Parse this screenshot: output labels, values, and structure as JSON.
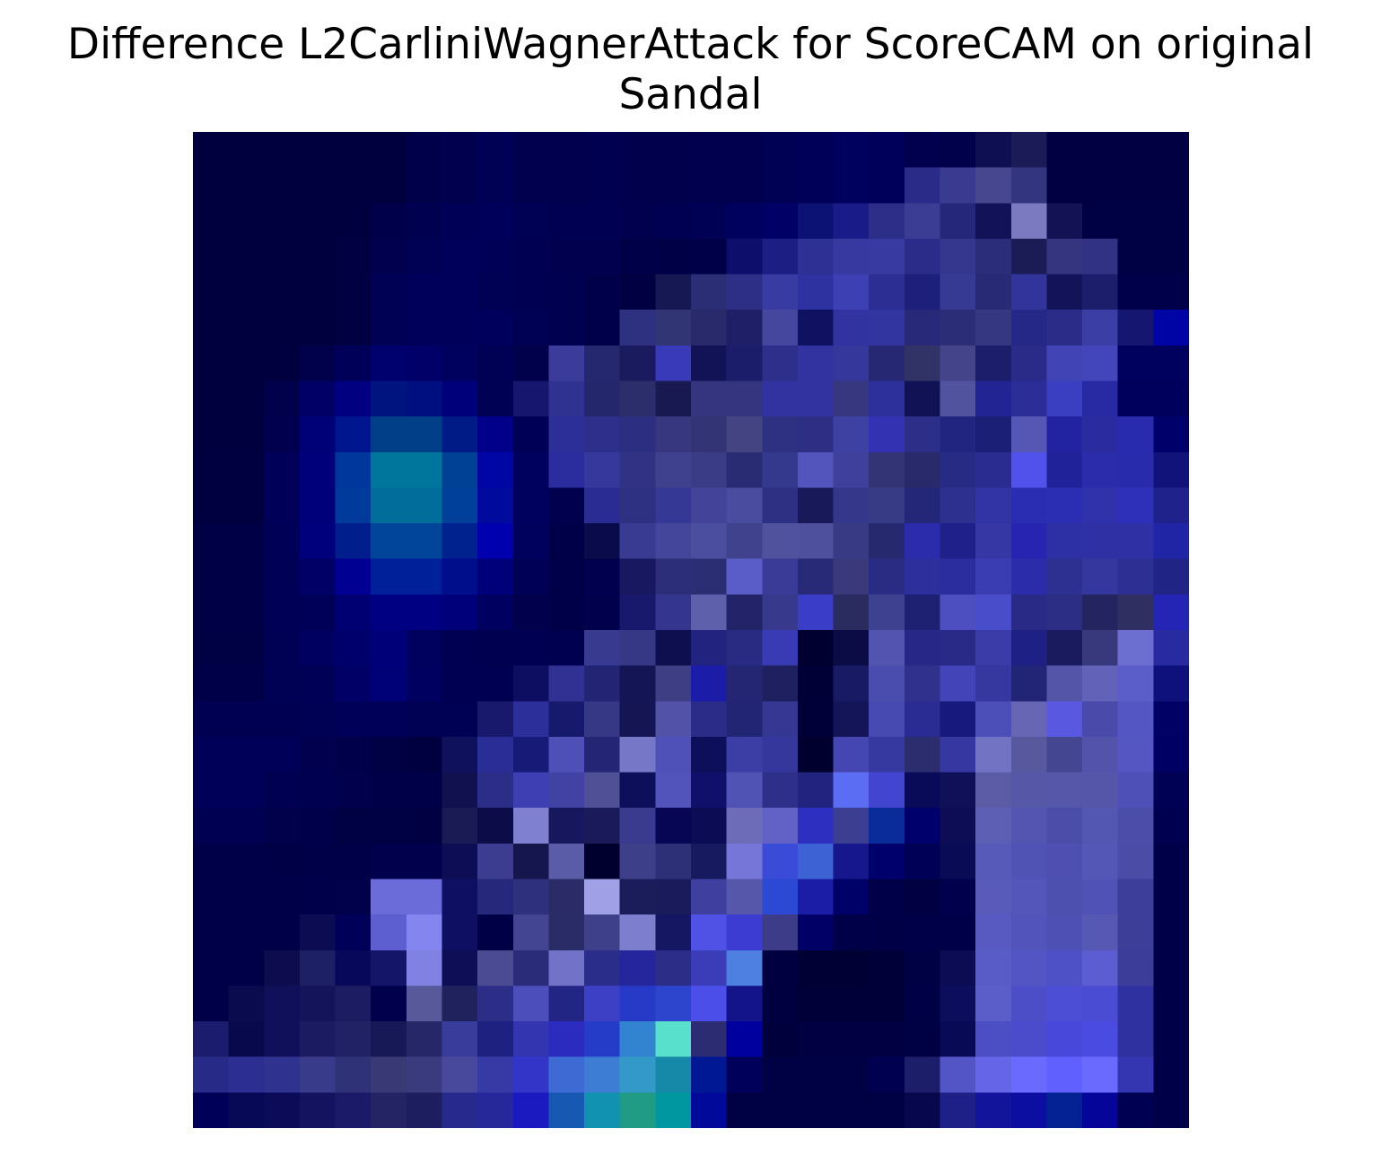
{
  "chart_data": {
    "type": "heatmap",
    "title_line1": "Difference L2CarliniWagnerAttack for ScoreCAM on original",
    "title_line2": "Sandal",
    "xlabel": "",
    "ylabel": "",
    "axes_visible": false,
    "grid": false,
    "legend": "none",
    "rows": 28,
    "cols": 28,
    "cell_colors": [
      [
        "#00003f",
        "#00003f",
        "#00003f",
        "#00003f",
        "#00003f",
        "#00003f",
        "#00004a",
        "#00004f",
        "#000054",
        "#00004e",
        "#00004f",
        "#000051",
        "#00004d",
        "#00004d",
        "#00004f",
        "#00004e",
        "#000054",
        "#000058",
        "#00005f",
        "#00005a",
        "#00004e",
        "#00004b",
        "#0e0f52",
        "#1a1b57",
        "#000043",
        "#000043",
        "#000043",
        "#000043"
      ],
      [
        "#00003f",
        "#00003f",
        "#00003f",
        "#00003f",
        "#00003f",
        "#00003f",
        "#00004a",
        "#00004f",
        "#000054",
        "#00004e",
        "#00004f",
        "#000051",
        "#00004d",
        "#00004d",
        "#00004f",
        "#00004e",
        "#000054",
        "#000058",
        "#00005f",
        "#00005a",
        "#2a2b88",
        "#3a3b90",
        "#46478e",
        "#34357f",
        "#000043",
        "#000043",
        "#000043",
        "#000043"
      ],
      [
        "#00003f",
        "#00003f",
        "#00003f",
        "#00003f",
        "#00003f",
        "#00004a",
        "#000051",
        "#000057",
        "#00005a",
        "#000054",
        "#000052",
        "#000052",
        "#00004f",
        "#000052",
        "#000055",
        "#00005f",
        "#000066",
        "#0c1174",
        "#181b88",
        "#2c2e88",
        "#3b3c94",
        "#25277a",
        "#111257",
        "#7b7ac0",
        "#121255",
        "#000045",
        "#000045",
        "#000045"
      ],
      [
        "#00003f",
        "#00003f",
        "#00003f",
        "#00003f",
        "#000042",
        "#00004e",
        "#000055",
        "#00005a",
        "#000057",
        "#000053",
        "#00004f",
        "#00004f",
        "#000049",
        "#000046",
        "#000049",
        "#0d0d6c",
        "#1c1e84",
        "#2e3093",
        "#3838a1",
        "#3839a1",
        "#2b2c89",
        "#35368e",
        "#2c2d7a",
        "#1b1c56",
        "#34357e",
        "#313283",
        "#000045",
        "#000045"
      ],
      [
        "#00003f",
        "#00003f",
        "#00003f",
        "#00003f",
        "#000042",
        "#000055",
        "#00005b",
        "#00005b",
        "#000055",
        "#000052",
        "#000051",
        "#00004a",
        "#000042",
        "#161854",
        "#2b2e74",
        "#2d2f86",
        "#383ba1",
        "#2e31a0",
        "#3c40b2",
        "#2d2e94",
        "#1e1f7a",
        "#373a92",
        "#292a76",
        "#32349b",
        "#121358",
        "#1c1e6c",
        "#00004a",
        "#00004a"
      ],
      [
        "#00003f",
        "#00003f",
        "#00003f",
        "#00003f",
        "#000042",
        "#000055",
        "#00005b",
        "#00005b",
        "#00005c",
        "#000054",
        "#000050",
        "#00004a",
        "#2e3080",
        "#323574",
        "#292a6b",
        "#1e1f67",
        "#45479f",
        "#111162",
        "#3233a0",
        "#3234a0",
        "#282978",
        "#2b2d77",
        "#353780",
        "#262887",
        "#2a2c87",
        "#3b3ea4",
        "#14166f",
        "#0004a4"
      ],
      [
        "#00003f",
        "#00003f",
        "#00003f",
        "#00004b",
        "#000059",
        "#00006e",
        "#000068",
        "#00005e",
        "#000054",
        "#00004b",
        "#3a3b9b",
        "#26286f",
        "#1a1b5e",
        "#383aba",
        "#121356",
        "#1b1c6a",
        "#2d2f8b",
        "#3233a1",
        "#36379a",
        "#262874",
        "#313366",
        "#43448a",
        "#1d1e6b",
        "#2a2b89",
        "#4044b4",
        "#4246ba",
        "#00005e",
        "#00005e"
      ],
      [
        "#00003f",
        "#00003f",
        "#00004b",
        "#000067",
        "#000081",
        "#00147f",
        "#000f80",
        "#00007b",
        "#000054",
        "#16166f",
        "#303292",
        "#25276c",
        "#2c2e6b",
        "#181951",
        "#34357e",
        "#34357e",
        "#3233a0",
        "#3233a0",
        "#36377f",
        "#2d2f9b",
        "#111155",
        "#52539f",
        "#232493",
        "#2c2d97",
        "#3a3ec1",
        "#282aa4",
        "#00005c",
        "#00005c"
      ],
      [
        "#00003f",
        "#00003f",
        "#00004e",
        "#000077",
        "#00168f",
        "#013f88",
        "#013f88",
        "#001b85",
        "#00008b",
        "#000056",
        "#2c2f98",
        "#2d2f8a",
        "#2c2e81",
        "#36377e",
        "#333475",
        "#444482",
        "#2e3182",
        "#2e2f84",
        "#3f41a2",
        "#3232b2",
        "#2c2e88",
        "#222580",
        "#1c1f76",
        "#5656b4",
        "#2223a0",
        "#292b9e",
        "#282bae",
        "#00006a"
      ],
      [
        "#000040",
        "#000040",
        "#000058",
        "#00007a",
        "#00379c",
        "#00769c",
        "#00769c",
        "#004095",
        "#0006a3",
        "#00005e",
        "#2b2d9f",
        "#36389b",
        "#313283",
        "#3f418e",
        "#3b3c86",
        "#292b73",
        "#35398e",
        "#5355bc",
        "#3e409c",
        "#333475",
        "#292a6c",
        "#282b83",
        "#2a2c8f",
        "#5151eb",
        "#20229a",
        "#2a2cac",
        "#282bab",
        "#11137b"
      ],
      [
        "#000040",
        "#000040",
        "#000058",
        "#00007a",
        "#003a9b",
        "#006d9b",
        "#006d9b",
        "#00409a",
        "#000b9e",
        "#00005e",
        "#00004e",
        "#2a2c93",
        "#2e3182",
        "#363895",
        "#424399",
        "#4a4ca0",
        "#2e3183",
        "#181958",
        "#35378b",
        "#373a85",
        "#242677",
        "#2e3090",
        "#3234a5",
        "#2a2db1",
        "#2b2eb2",
        "#2f32ab",
        "#2e30b9",
        "#1f228b"
      ],
      [
        "#000046",
        "#000046",
        "#000056",
        "#00007c",
        "#001e8c",
        "#00459a",
        "#00459a",
        "#00228f",
        "#0000ae",
        "#00005d",
        "#000049",
        "#0a0b4a",
        "#393b93",
        "#43469b",
        "#4b4d9f",
        "#40428e",
        "#50529e",
        "#4e509e",
        "#383b84",
        "#27296f",
        "#2a2cab",
        "#1f208a",
        "#3637a5",
        "#2624b0",
        "#2d2fa4",
        "#2f30a4",
        "#2e30a4",
        "#2025a5"
      ],
      [
        "#000046",
        "#000046",
        "#000056",
        "#000066",
        "#000092",
        "#00209a",
        "#00209a",
        "#000e8b",
        "#00007a",
        "#000056",
        "#000049",
        "#00004f",
        "#17185f",
        "#2c2e7a",
        "#2c2e74",
        "#5a5cc7",
        "#3a3b96",
        "#282a77",
        "#39397c",
        "#2a2b82",
        "#2d2f9d",
        "#2b2d9e",
        "#3a3cb1",
        "#2a2ca9",
        "#2e3091",
        "#36379e",
        "#2d2f93",
        "#202484"
      ],
      [
        "#000046",
        "#000046",
        "#000056",
        "#000059",
        "#000072",
        "#000083",
        "#000083",
        "#00007a",
        "#000060",
        "#00004d",
        "#000049",
        "#00004d",
        "#18196c",
        "#33358e",
        "#5e60ac",
        "#222368",
        "#373a8c",
        "#3a3dc8",
        "#2a2c60",
        "#3e418f",
        "#1e2072",
        "#4d4fc1",
        "#4a4dca",
        "#282a86",
        "#2c2e85",
        "#232460",
        "#2f2f61",
        "#2525b5"
      ],
      [
        "#000044",
        "#000044",
        "#000054",
        "#000060",
        "#00006c",
        "#000078",
        "#00005e",
        "#000052",
        "#000050",
        "#000052",
        "#000050",
        "#383a8f",
        "#363885",
        "#0d0f4e",
        "#22237e",
        "#292a81",
        "#393bb5",
        "#000030",
        "#0b0b45",
        "#5354b0",
        "#262786",
        "#292a87",
        "#3b3ca8",
        "#1f2085",
        "#1a1b5f",
        "#38397d",
        "#6d6fd0",
        "#282aa0"
      ],
      [
        "#000049",
        "#000049",
        "#000055",
        "#000057",
        "#000067",
        "#000077",
        "#000060",
        "#000052",
        "#000052",
        "#0d0d61",
        "#303193",
        "#232474",
        "#141555",
        "#3e3e84",
        "#1b1ca7",
        "#242674",
        "#1f2060",
        "#000036",
        "#181a64",
        "#4b4dae",
        "#30308d",
        "#4244b8",
        "#36379f",
        "#222476",
        "#5454a8",
        "#6262b8",
        "#5b5ec8",
        "#0e117b"
      ],
      [
        "#000052",
        "#000052",
        "#000052",
        "#000055",
        "#000059",
        "#000058",
        "#000055",
        "#000054",
        "#18196c",
        "#2c2f99",
        "#17196c",
        "#363785",
        "#141552",
        "#5252a8",
        "#2a2c88",
        "#222474",
        "#353793",
        "#000039",
        "#141559",
        "#474ab0",
        "#2a2c94",
        "#18197c",
        "#4d4fb8",
        "#6666b4",
        "#5859e0",
        "#4a4aaa",
        "#5456c4",
        "#000065"
      ],
      [
        "#000058",
        "#000058",
        "#000058",
        "#00004e",
        "#00004a",
        "#000044",
        "#000041",
        "#10115d",
        "#2a2d95",
        "#181a78",
        "#4e50b7",
        "#242575",
        "#7677c7",
        "#4f51b9",
        "#0d0f5a",
        "#3c3ea5",
        "#36379c",
        "#00002f",
        "#4546b2",
        "#3639a0",
        "#2b2d6f",
        "#3637a0",
        "#7373c4",
        "#58589f",
        "#454691",
        "#5353ac",
        "#5556c1",
        "#000064"
      ],
      [
        "#000058",
        "#000058",
        "#000053",
        "#000050",
        "#00004d",
        "#000049",
        "#000049",
        "#10114e",
        "#2b2d87",
        "#3d3fb2",
        "#4142a4",
        "#4f5096",
        "#0e0f5a",
        "#5254bb",
        "#10106b",
        "#5153b4",
        "#2d2f88",
        "#22237e",
        "#5a6df3",
        "#4245d0",
        "#0a0b58",
        "#0f1058",
        "#5c5ca6",
        "#5757a8",
        "#5657a8",
        "#5555aa",
        "#4f50b7",
        "#000055"
      ],
      [
        "#000052",
        "#000052",
        "#00004b",
        "#00004a",
        "#000044",
        "#000044",
        "#000042",
        "#1a1b55",
        "#0c0c49",
        "#8080d0",
        "#17175d",
        "#1a1a5b",
        "#3a3b8f",
        "#060655",
        "#0c0c54",
        "#6c6cb8",
        "#6262c6",
        "#2d2fc1",
        "#3c3e92",
        "#0a2c9b",
        "#00006c",
        "#0d0d55",
        "#5d5fb5",
        "#5455b0",
        "#4b4da9",
        "#5457b1",
        "#4b4da9",
        "#000050"
      ],
      [
        "#000048",
        "#000048",
        "#000046",
        "#000048",
        "#000049",
        "#00004d",
        "#00004d",
        "#0c0d55",
        "#3c3d91",
        "#15164e",
        "#5b5ca8",
        "#00002f",
        "#3d3f88",
        "#2e3077",
        "#181a5f",
        "#7676d8",
        "#3a4bd8",
        "#3c62d4",
        "#16178d",
        "#00006c",
        "#000056",
        "#0a0b55",
        "#585ab9",
        "#5153b4",
        "#4f4fb1",
        "#5557b6",
        "#4a4ca6",
        "#000048"
      ],
      [
        "#000048",
        "#000048",
        "#000048",
        "#00004a",
        "#00004b",
        "#6b6bd9",
        "#6b6bd9",
        "#0e0f62",
        "#26287c",
        "#2e307d",
        "#2b2c67",
        "#a0a0e6",
        "#1b1c5a",
        "#1a1b5a",
        "#3e3f9f",
        "#5657aa",
        "#2b49d4",
        "#1c1da7",
        "#000069",
        "#000049",
        "#000043",
        "#00004d",
        "#595ab9",
        "#5456b9",
        "#4e50af",
        "#5152b6",
        "#3c3e99",
        "#000048"
      ],
      [
        "#000048",
        "#000048",
        "#000048",
        "#0c0c52",
        "#000058",
        "#5d5ed0",
        "#8585ef",
        "#0e0e62",
        "#000046",
        "#444592",
        "#2a2c68",
        "#3f408a",
        "#7e7ece",
        "#151763",
        "#5051e5",
        "#3c3cd3",
        "#3c3c88",
        "#000066",
        "#000048",
        "#000046",
        "#000048",
        "#000048",
        "#595ac1",
        "#5354bb",
        "#4e50b3",
        "#5658b4",
        "#3c3e98",
        "#000048"
      ],
      [
        "#000048",
        "#000048",
        "#0c0c4e",
        "#1e2066",
        "#08085a",
        "#141468",
        "#8081e2",
        "#0d0e55",
        "#4a4b92",
        "#2b2c79",
        "#7172c8",
        "#2b2d8a",
        "#25269b",
        "#2b2d86",
        "#3a3db7",
        "#4d80e0",
        "#000041",
        "#000035",
        "#000035",
        "#000038",
        "#000044",
        "#0b0c53",
        "#595bc6",
        "#5355c5",
        "#4e50c5",
        "#5b5dd0",
        "#3b3d99",
        "#000048"
      ],
      [
        "#000048",
        "#0a0a4f",
        "#10105a",
        "#14145a",
        "#1b1c62",
        "#00004d",
        "#58599b",
        "#20225e",
        "#2c2d86",
        "#4c4ebb",
        "#232585",
        "#3d3fc5",
        "#2639c7",
        "#2d45cc",
        "#4c4ee9",
        "#13148a",
        "#000040",
        "#000038",
        "#000038",
        "#000039",
        "#000046",
        "#0d0d5e",
        "#5b5dc9",
        "#4c4ec8",
        "#4c4fd6",
        "#4a4cd3",
        "#2f31a0",
        "#000048"
      ],
      [
        "#1b1c6e",
        "#08094c",
        "#10105a",
        "#1b1b61",
        "#202265",
        "#171856",
        "#262768",
        "#3a3c9b",
        "#1f2180",
        "#3234b0",
        "#2b2cbf",
        "#253cc8",
        "#3384d0",
        "#58e0cc",
        "#2b2c72",
        "#00009e",
        "#00003d",
        "#000042",
        "#000042",
        "#000043",
        "#000045",
        "#090a56",
        "#4c4ec3",
        "#4b4ccb",
        "#4849db",
        "#4a4be0",
        "#2f31a0",
        "#000048"
      ],
      [
        "#272a87",
        "#2c2e92",
        "#30328f",
        "#383a8a",
        "#303277",
        "#383975",
        "#3a3b7f",
        "#48499d",
        "#373aa4",
        "#3235c8",
        "#3e6ad4",
        "#3d7ed4",
        "#3399c8",
        "#1689a9",
        "#011895",
        "#00005a",
        "#000045",
        "#000045",
        "#000045",
        "#000050",
        "#1d1e6a",
        "#5354c6",
        "#6565e8",
        "#6a6aff",
        "#6060ff",
        "#6a6aff",
        "#3435b0",
        "#000049"
      ],
      [
        "#000058",
        "#070856",
        "#0b0b58",
        "#131360",
        "#1a1a68",
        "#242465",
        "#1d1e5f",
        "#27298d",
        "#26289a",
        "#1a1ac0",
        "#1758b2",
        "#1192b0",
        "#209c84",
        "#0097a0",
        "#000999",
        "#000045",
        "#000045",
        "#000045",
        "#000045",
        "#000045",
        "#07074e",
        "#1f2087",
        "#12149b",
        "#0c0ea1",
        "#052294",
        "#050699",
        "#000052",
        "#000049"
      ]
    ]
  }
}
